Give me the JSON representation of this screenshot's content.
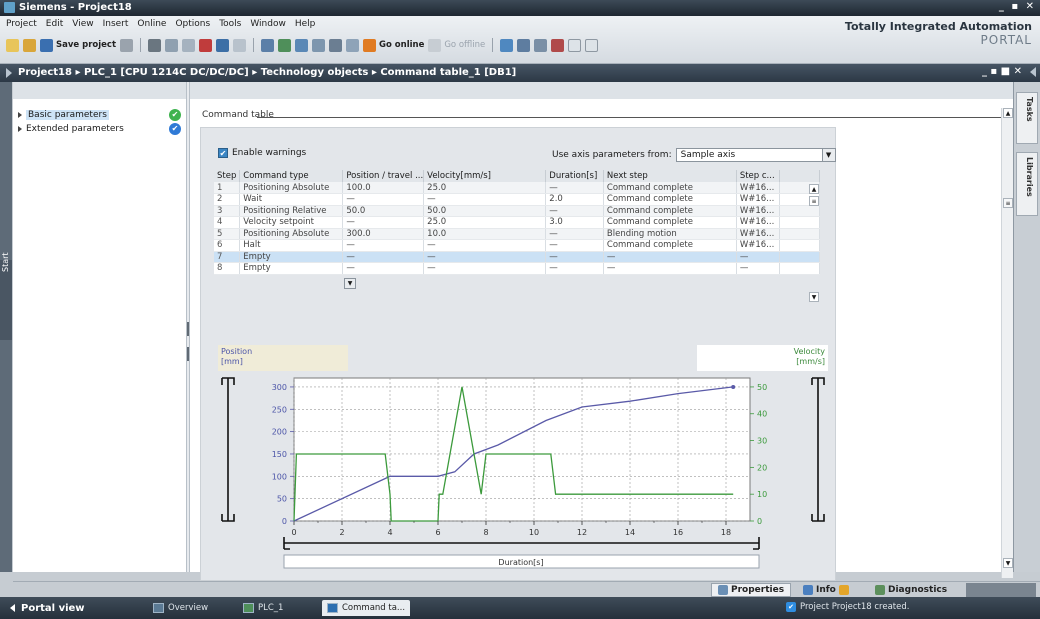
{
  "window": {
    "title": "Siemens - Project18",
    "controls": "_ ▪ ✕"
  },
  "menu": [
    "Project",
    "Edit",
    "View",
    "Insert",
    "Online",
    "Options",
    "Tools",
    "Window",
    "Help"
  ],
  "toolbar": {
    "save_label": "Save project",
    "go_online": "Go online",
    "go_offline": "Go offline"
  },
  "brand": {
    "line1": "Totally Integrated Automation",
    "line2": "PORTAL"
  },
  "breadcrumb": {
    "path": "Project18  ▸  PLC_1 [CPU 1214C DC/DC/DC]  ▸  Technology objects  ▸  Command table_1 [DB1]",
    "controls": "_ ▪ ■ ✕"
  },
  "start_strip": "Start",
  "nav": {
    "items": [
      {
        "label": "Basic parameters",
        "selected": true,
        "status": "✔",
        "status_color": "#3fb34f"
      },
      {
        "label": "Extended parameters",
        "selected": false,
        "status": "✔",
        "status_color": "#2f7ad6"
      }
    ]
  },
  "section": {
    "title": "Command table"
  },
  "enable_warnings": {
    "label": "Enable warnings",
    "checked": true
  },
  "axis_params": {
    "label": "Use axis parameters from:",
    "value": "Sample axis"
  },
  "table": {
    "columns": [
      "Step",
      "Command type",
      "Position / travel ...",
      "Velocity[mm/s]",
      "Duration[s]",
      "Next step",
      "Step c..."
    ],
    "rows": [
      [
        "1",
        "Positioning Absolute",
        "100.0",
        "25.0",
        "—",
        "Command complete",
        "W#16..."
      ],
      [
        "2",
        "Wait",
        "—",
        "—",
        "2.0",
        "Command complete",
        "W#16..."
      ],
      [
        "3",
        "Positioning Relative",
        "50.0",
        "50.0",
        "—",
        "Command complete",
        "W#16..."
      ],
      [
        "4",
        "Velocity setpoint",
        "—",
        "25.0",
        "3.0",
        "Command complete",
        "W#16..."
      ],
      [
        "5",
        "Positioning Absolute",
        "300.0",
        "10.0",
        "—",
        "Blending motion",
        "W#16..."
      ],
      [
        "6",
        "Halt",
        "—",
        "—",
        "—",
        "Command complete",
        "W#16..."
      ],
      [
        "7",
        "Empty",
        "—",
        "—",
        "—",
        "—",
        "—"
      ],
      [
        "8",
        "Empty",
        "—",
        "—",
        "—",
        "—",
        "—"
      ]
    ],
    "highlight_row": 6
  },
  "chart_labels": {
    "position": "Position",
    "position_unit": "[mm]",
    "velocity": "Velocity",
    "velocity_unit": "[mm/s]",
    "xlabel": "Duration[s]"
  },
  "chart_data": {
    "type": "line",
    "xlabel": "Duration[s]",
    "ylabel_left": "Position [mm]",
    "ylabel_right": "Velocity [mm/s]",
    "x_ticks": [
      0,
      2,
      4,
      6,
      8,
      10,
      12,
      14,
      16,
      18
    ],
    "y_left_ticks": [
      0,
      50,
      100,
      150,
      200,
      250,
      300
    ],
    "y_right_ticks": [
      0,
      10,
      20,
      30,
      40,
      50
    ],
    "xlim": [
      0,
      19
    ],
    "ylim_left": [
      0,
      320
    ],
    "ylim_right": [
      0,
      53.33
    ],
    "grid": true,
    "series": [
      {
        "name": "Position",
        "color": "#5a5aa8",
        "axis": "left",
        "x": [
          0,
          4,
          6,
          6.7,
          7.5,
          8.5,
          10.5,
          12,
          14,
          16,
          18.3
        ],
        "y": [
          0,
          100,
          100,
          110,
          150,
          170,
          225,
          255,
          268,
          285,
          300
        ]
      },
      {
        "name": "Velocity",
        "color": "#3c9a3c",
        "axis": "right",
        "x": [
          0,
          0.1,
          3.8,
          4.0,
          4.05,
          6.0,
          6.05,
          6.2,
          7.0,
          7.8,
          8.0,
          8.1,
          10.7,
          10.9,
          12.0,
          12.1,
          18.3
        ],
        "y": [
          0,
          25,
          25,
          10,
          0,
          0,
          10,
          10,
          50,
          10,
          25,
          25,
          25,
          10,
          10,
          10,
          10
        ]
      }
    ]
  },
  "right_tabs": [
    "Tasks",
    "Libraries"
  ],
  "inspector_tabs": [
    "Properties",
    "Info",
    "Diagnostics"
  ],
  "taskbar": {
    "portal_view": "Portal view",
    "tabs": [
      "Overview",
      "PLC_1",
      "Command ta..."
    ],
    "status": "Project Project18 created."
  }
}
